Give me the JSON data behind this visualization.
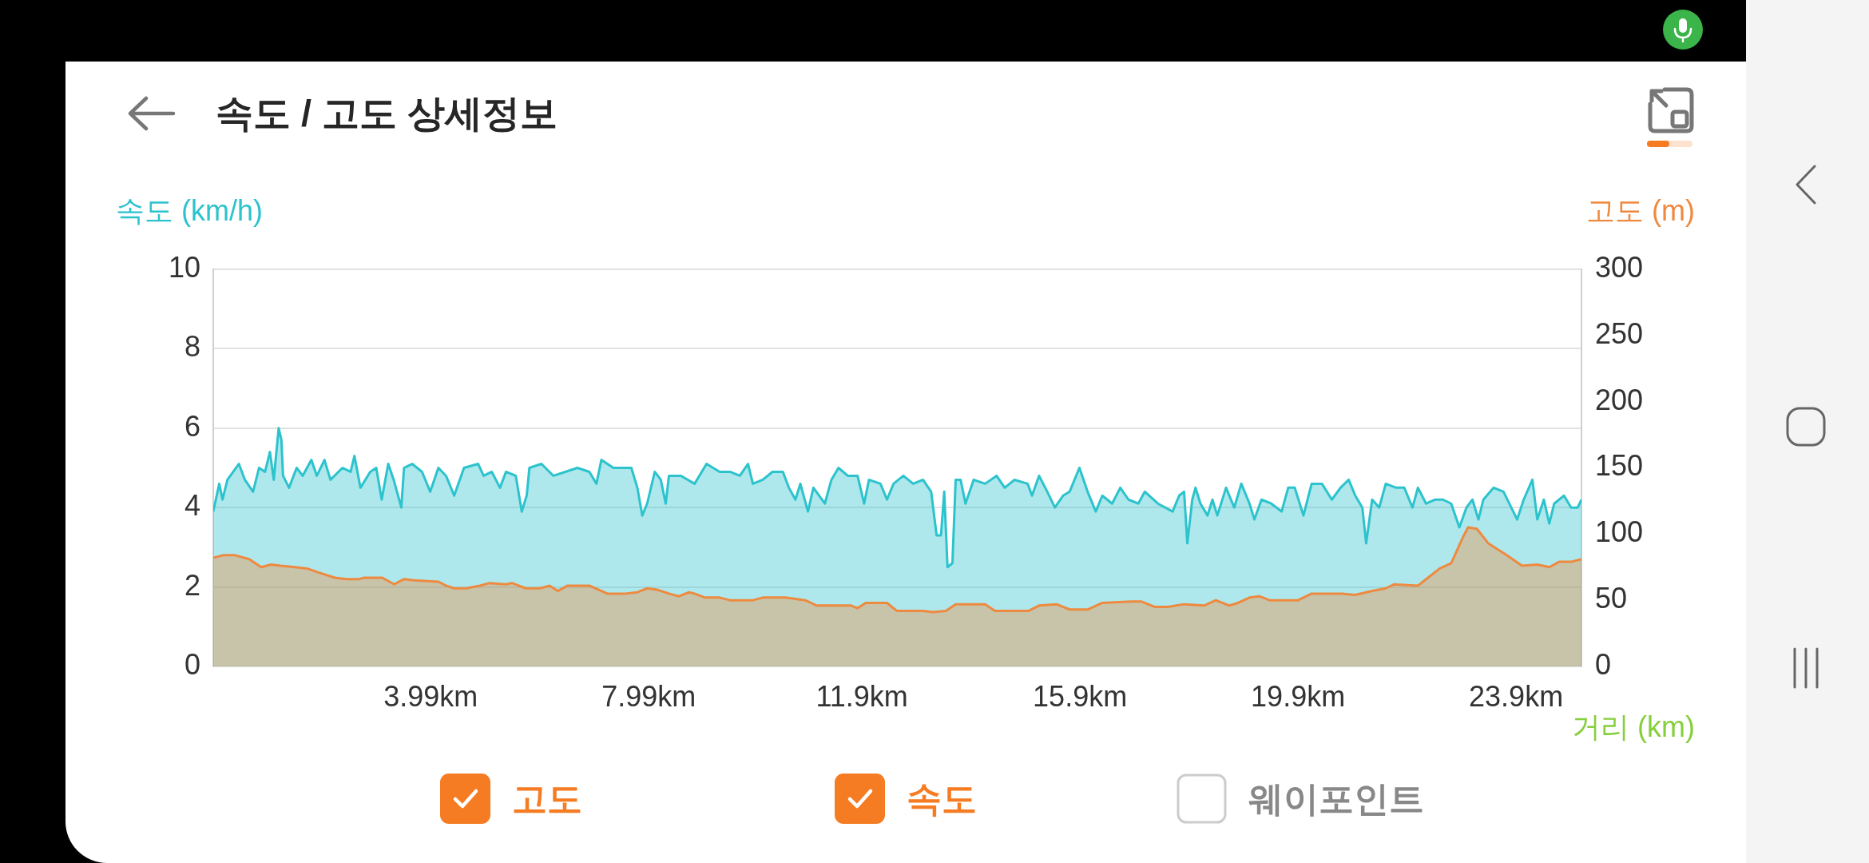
{
  "chart_data": {
    "type": "area",
    "title": "속도 / 고도 상세정보",
    "xlabel": "거리 (km)",
    "ylabel": "속도 (km/h)",
    "y2label": "고도 (m)",
    "xlim": [
      0,
      25.1
    ],
    "xticks": [
      {
        "value": 3.99,
        "label": "3.99km"
      },
      {
        "value": 7.99,
        "label": "7.99km"
      },
      {
        "value": 11.9,
        "label": "11.9km"
      },
      {
        "value": 15.9,
        "label": "15.9km"
      },
      {
        "value": 19.9,
        "label": "19.9km"
      },
      {
        "value": 23.9,
        "label": "23.9km"
      }
    ],
    "ylim": [
      0,
      10
    ],
    "yticks": [
      0,
      2,
      4,
      6,
      8,
      10
    ],
    "y2lim": [
      0,
      300
    ],
    "y2ticks": [
      0,
      50,
      100,
      150,
      200,
      250,
      300
    ],
    "grid": "y",
    "series": [
      {
        "color": "#ee8a40",
        "axis": "y2",
        "x": [
          0,
          0.18,
          0.4,
          0.66,
          0.88,
          1.06,
          1.24,
          1.5,
          1.72,
          1.93,
          2.23,
          2.45,
          2.67,
          2.77,
          3.1,
          3.32,
          3.5,
          3.69,
          4.13,
          4.27,
          4.42,
          4.64,
          4.89,
          5.07,
          5.37,
          5.48,
          5.73,
          5.99,
          6.17,
          6.32,
          6.5,
          6.9,
          7.23,
          7.56,
          7.78,
          7.96,
          8.14,
          8.36,
          8.54,
          8.73,
          8.83,
          9.02,
          9.29,
          9.48,
          9.9,
          10.08,
          10.5,
          10.86,
          11.07,
          11.7,
          11.82,
          11.97,
          12.36,
          12.54,
          13.02,
          13.2,
          13.44,
          13.62,
          14.16,
          14.34,
          14.7,
          14.96,
          15.15,
          15.47,
          15.71,
          16.04,
          16.31,
          16.85,
          17.03,
          17.27,
          17.51,
          17.81,
          18.18,
          18.39,
          18.64,
          18.8,
          19.01,
          19.19,
          19.38,
          19.9,
          20.15,
          20.49,
          20.71,
          20.95,
          21.26,
          21.51,
          21.66,
          22.1,
          22.5,
          22.71,
          22.93,
          23.02,
          23.18,
          23.39,
          23.73,
          24.01,
          24.29,
          24.51,
          24.69,
          24.91,
          25.1
        ],
        "values": [
          82,
          84,
          84,
          81,
          75,
          77,
          76,
          75,
          74,
          71,
          67,
          66,
          66,
          67,
          67,
          62,
          66,
          65,
          64,
          61,
          59,
          59,
          61,
          63,
          62,
          63,
          59,
          59,
          61,
          57,
          61,
          61,
          55,
          55,
          56,
          59,
          58,
          55,
          53,
          56,
          55,
          52,
          52,
          50,
          50,
          52,
          52,
          50,
          46,
          46,
          44,
          48,
          48,
          42,
          42,
          41,
          42,
          47,
          47,
          42,
          42,
          42,
          46,
          47,
          43,
          43,
          48,
          49,
          49,
          45,
          45,
          47,
          46,
          50,
          46,
          48,
          52,
          53,
          50,
          50,
          55,
          55,
          55,
          54,
          57,
          59,
          62,
          61,
          74,
          78,
          98,
          105,
          104,
          93,
          84,
          76,
          77,
          75,
          79,
          79,
          81
        ]
      },
      {
        "color": "#2cc3cd",
        "axis": "y",
        "x": [
          0,
          0.11,
          0.17,
          0.26,
          0.47,
          0.58,
          0.73,
          0.84,
          0.95,
          1.04,
          1.11,
          1.2,
          1.25,
          1.28,
          1.39,
          1.53,
          1.64,
          1.8,
          1.9,
          2.04,
          2.15,
          2.37,
          2.52,
          2.59,
          2.7,
          2.88,
          2.99,
          3.09,
          3.21,
          3.31,
          3.45,
          3.5,
          3.65,
          3.83,
          3.98,
          4.13,
          4.27,
          4.42,
          4.6,
          4.86,
          4.96,
          5.11,
          5.26,
          5.37,
          5.55,
          5.66,
          5.75,
          5.8,
          6.02,
          6.24,
          6.46,
          6.68,
          6.9,
          7.03,
          7.12,
          7.34,
          7.67,
          7.78,
          7.87,
          7.96,
          8.1,
          8.21,
          8.3,
          8.36,
          8.58,
          8.83,
          9.05,
          9.29,
          9.48,
          9.66,
          9.81,
          9.9,
          10.08,
          10.26,
          10.45,
          10.56,
          10.68,
          10.77,
          10.91,
          11.01,
          11.22,
          11.34,
          11.47,
          11.64,
          11.82,
          11.94,
          12.03,
          12.24,
          12.36,
          12.48,
          12.66,
          12.84,
          13.02,
          13.17,
          13.27,
          13.35,
          13.41,
          13.47,
          13.56,
          13.62,
          13.71,
          13.8,
          13.95,
          14.16,
          14.37,
          14.52,
          14.7,
          14.94,
          15.02,
          15.15,
          15.3,
          15.44,
          15.59,
          15.71,
          15.89,
          16.04,
          16.19,
          16.31,
          16.49,
          16.64,
          16.79,
          16.97,
          17.09,
          17.33,
          17.6,
          17.72,
          17.81,
          17.87,
          17.96,
          18.02,
          18.11,
          18.24,
          18.33,
          18.42,
          18.58,
          18.73,
          18.86,
          19.01,
          19.1,
          19.23,
          19.41,
          19.6,
          19.72,
          19.84,
          20.0,
          20.15,
          20.34,
          20.52,
          20.68,
          20.83,
          20.95,
          21.08,
          21.15,
          21.26,
          21.39,
          21.51,
          21.7,
          21.85,
          22.0,
          22.1,
          22.25,
          22.41,
          22.56,
          22.71,
          22.86,
          22.99,
          23.1,
          23.21,
          23.3,
          23.49,
          23.67,
          23.92,
          24.04,
          24.2,
          24.29,
          24.41,
          24.51,
          24.6,
          24.78,
          24.91,
          25.03,
          25.1
        ],
        "values": [
          3.9,
          4.6,
          4.2,
          4.7,
          5.1,
          4.7,
          4.4,
          5.0,
          4.9,
          5.4,
          4.7,
          6.0,
          5.7,
          4.8,
          4.5,
          5.0,
          4.8,
          5.2,
          4.8,
          5.2,
          4.7,
          5.0,
          4.9,
          5.3,
          4.5,
          4.9,
          5.0,
          4.2,
          5.1,
          4.7,
          4.0,
          5.0,
          5.1,
          4.9,
          4.4,
          5.0,
          4.8,
          4.3,
          5.0,
          5.1,
          4.8,
          4.9,
          4.5,
          4.9,
          4.8,
          3.9,
          4.3,
          5.0,
          5.1,
          4.8,
          4.9,
          5.0,
          4.9,
          4.6,
          5.2,
          5.0,
          5.0,
          4.5,
          3.8,
          4.1,
          4.9,
          4.7,
          4.1,
          4.8,
          4.8,
          4.6,
          5.1,
          4.9,
          4.9,
          4.8,
          5.1,
          4.6,
          4.7,
          4.9,
          4.9,
          4.5,
          4.2,
          4.6,
          3.9,
          4.5,
          4.1,
          4.7,
          5.0,
          4.8,
          4.8,
          4.1,
          4.7,
          4.6,
          4.2,
          4.6,
          4.8,
          4.6,
          4.7,
          4.4,
          3.3,
          3.3,
          4.4,
          2.5,
          2.6,
          4.7,
          4.7,
          4.1,
          4.7,
          4.6,
          4.8,
          4.5,
          4.7,
          4.6,
          4.3,
          4.8,
          4.4,
          4.0,
          4.3,
          4.4,
          5.0,
          4.4,
          3.9,
          4.3,
          4.1,
          4.5,
          4.2,
          4.1,
          4.4,
          4.1,
          3.9,
          4.3,
          4.4,
          3.1,
          4.2,
          4.5,
          4.1,
          3.8,
          4.2,
          3.8,
          4.5,
          4.0,
          4.6,
          4.1,
          3.7,
          4.2,
          4.1,
          3.9,
          4.5,
          4.5,
          3.8,
          4.6,
          4.6,
          4.2,
          4.5,
          4.7,
          4.3,
          4.0,
          3.1,
          4.2,
          4.0,
          4.6,
          4.5,
          4.5,
          4.0,
          4.5,
          4.1,
          4.2,
          4.2,
          4.1,
          3.5,
          4.0,
          4.2,
          3.7,
          4.2,
          4.5,
          4.4,
          3.7,
          4.2,
          4.7,
          3.7,
          4.2,
          3.6,
          4.1,
          4.3,
          4.0,
          4.0,
          4.2
        ]
      }
    ],
    "annotations": [
      "고도",
      "속도",
      "웨이포인트"
    ]
  }
}
